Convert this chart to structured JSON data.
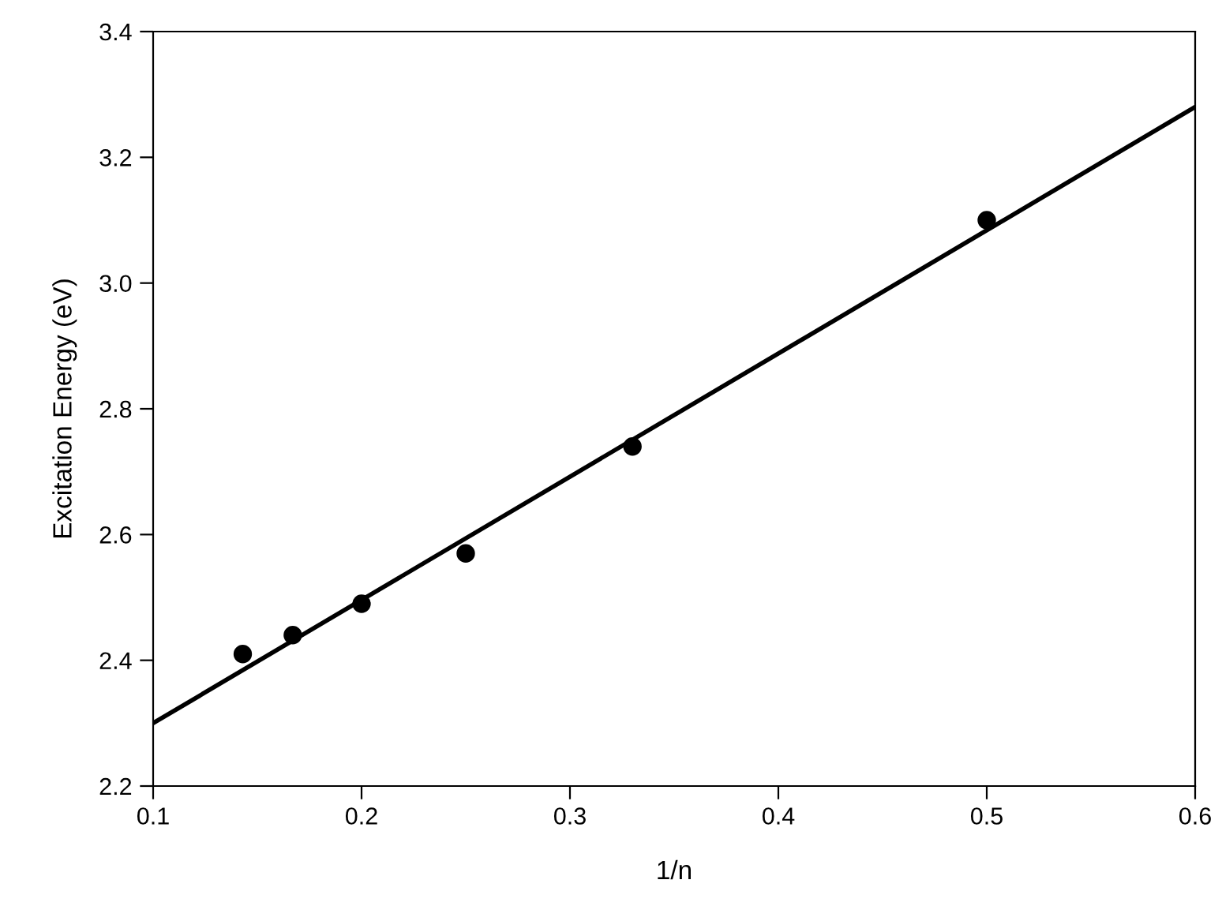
{
  "chart_data": {
    "type": "scatter",
    "xlabel": "1/n",
    "ylabel": "Excitation Energy (eV)",
    "series": [
      {
        "color": "#000000",
        "marker": "circle",
        "x": [
          0.143,
          0.167,
          0.2,
          0.25,
          0.33,
          0.5
        ],
        "values": [
          2.41,
          2.44,
          2.49,
          2.57,
          2.74,
          3.1
        ]
      },
      {
        "type": "line",
        "color": "#000000",
        "marker": "none",
        "line_style": "solid",
        "x": [
          0.1,
          0.6
        ],
        "values": [
          2.3,
          3.28
        ]
      }
    ],
    "xlim": [
      0.1,
      0.6
    ],
    "xticks": [
      0.1,
      0.2,
      0.3,
      0.4,
      0.5,
      0.6
    ],
    "ylim": [
      2.2,
      3.4
    ],
    "yticks": [
      2.2,
      2.4,
      2.6,
      2.8,
      {
        "value": 3,
        "label": "3.0"
      },
      3.2,
      3.4
    ],
    "grid": false,
    "legend": false
  }
}
